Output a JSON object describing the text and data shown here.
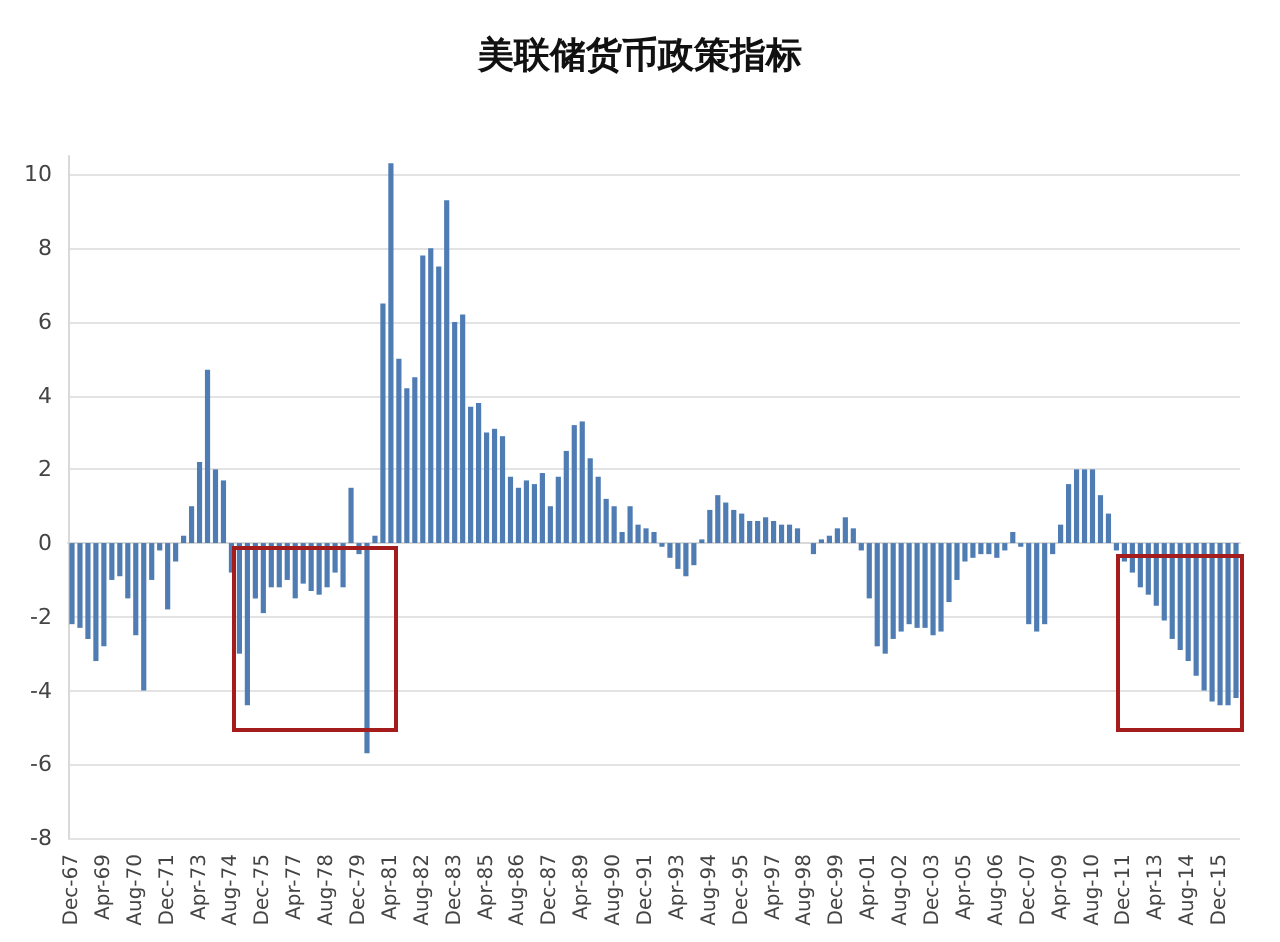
{
  "chart_data": {
    "type": "bar",
    "title": "美联储货币政策指标",
    "categories": [
      "Dec-67",
      null,
      null,
      null,
      "Apr-69",
      null,
      null,
      null,
      "Aug-70",
      null,
      null,
      null,
      "Dec-71",
      null,
      null,
      null,
      "Apr-73",
      null,
      null,
      null,
      "Aug-74",
      null,
      null,
      null,
      "Dec-75",
      null,
      null,
      null,
      "Apr-77",
      null,
      null,
      null,
      "Aug-78",
      null,
      null,
      null,
      "Dec-79",
      null,
      null,
      null,
      "Apr-81",
      null,
      null,
      null,
      "Aug-82",
      null,
      null,
      null,
      "Dec-83",
      null,
      null,
      null,
      "Apr-85",
      null,
      null,
      null,
      "Aug-86",
      null,
      null,
      null,
      "Dec-87",
      null,
      null,
      null,
      "Apr-89",
      null,
      null,
      null,
      "Aug-90",
      null,
      null,
      null,
      "Dec-91",
      null,
      null,
      null,
      "Apr-93",
      null,
      null,
      null,
      "Aug-94",
      null,
      null,
      null,
      "Dec-95",
      null,
      null,
      null,
      "Apr-97",
      null,
      null,
      null,
      "Aug-98",
      null,
      null,
      null,
      "Dec-99",
      null,
      null,
      null,
      "Apr-01",
      null,
      null,
      null,
      "Aug-02",
      null,
      null,
      null,
      "Dec-03",
      null,
      null,
      null,
      "Apr-05",
      null,
      null,
      null,
      "Aug-06",
      null,
      null,
      null,
      "Dec-07",
      null,
      null,
      null,
      "Apr-09",
      null,
      null,
      null,
      "Aug-10",
      null,
      null,
      null,
      "Dec-11",
      null,
      null,
      null,
      "Apr-13",
      null,
      null,
      null,
      "Aug-14",
      null,
      null,
      null,
      "Dec-15",
      null,
      null
    ],
    "values": [
      -2.2,
      -2.3,
      -2.6,
      -3.2,
      -2.8,
      -1.0,
      -0.9,
      -1.5,
      -2.5,
      -4.0,
      -1.0,
      -0.2,
      -1.8,
      -0.5,
      0.2,
      1.0,
      2.2,
      4.7,
      2.0,
      1.7,
      -0.8,
      -3.0,
      -4.4,
      -1.5,
      -1.9,
      -1.2,
      -1.2,
      -1.0,
      -1.5,
      -1.1,
      -1.3,
      -1.4,
      -1.2,
      -0.8,
      -1.2,
      1.5,
      -0.3,
      -5.7,
      0.2,
      6.5,
      10.3,
      5.0,
      4.2,
      4.5,
      7.8,
      8.0,
      7.5,
      9.3,
      6.0,
      6.2,
      3.7,
      3.8,
      3.0,
      3.1,
      2.9,
      1.8,
      1.5,
      1.7,
      1.6,
      1.9,
      1.0,
      1.8,
      2.5,
      3.2,
      3.3,
      2.3,
      1.8,
      1.2,
      1.0,
      0.3,
      1.0,
      0.5,
      0.4,
      0.3,
      -0.1,
      -0.4,
      -0.7,
      -0.9,
      -0.6,
      0.1,
      0.9,
      1.3,
      1.1,
      0.9,
      0.8,
      0.6,
      0.6,
      0.7,
      0.6,
      0.5,
      0.5,
      0.4,
      0.0,
      -0.3,
      0.1,
      0.2,
      0.4,
      0.7,
      0.4,
      -0.2,
      -1.5,
      -2.8,
      -3.0,
      -2.6,
      -2.4,
      -2.2,
      -2.3,
      -2.3,
      -2.5,
      -2.4,
      -1.6,
      -1.0,
      -0.5,
      -0.4,
      -0.3,
      -0.3,
      -0.4,
      -0.2,
      0.3,
      -0.1,
      -2.2,
      -2.4,
      -2.2,
      -0.3,
      0.5,
      1.6,
      2.0,
      2.0,
      2.0,
      1.3,
      0.8,
      -0.2,
      -0.5,
      -0.8,
      -1.2,
      -1.4,
      -1.7,
      -2.1,
      -2.6,
      -2.9,
      -3.2,
      -3.6,
      -4.0,
      -4.3,
      -4.4,
      -4.4,
      -4.2
    ],
    "color": "#4f7db3",
    "ylim": [
      -8,
      10.5
    ],
    "yticks": [
      -8,
      -6,
      -4,
      -2,
      0,
      2,
      4,
      6,
      8,
      10
    ],
    "grid": "y"
  }
}
